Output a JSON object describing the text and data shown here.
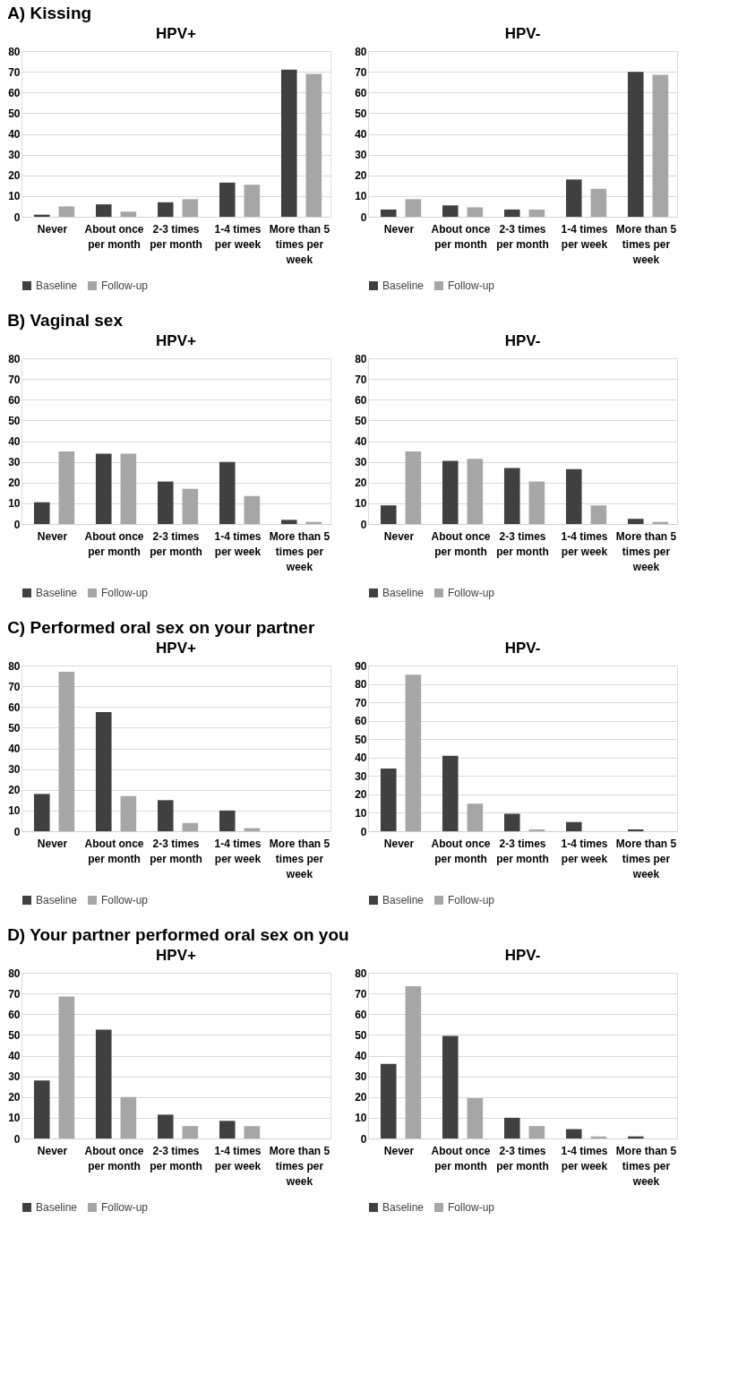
{
  "chart_data": [
    {
      "type": "bar",
      "title": "HPV+",
      "annotations": [
        "A) Kissing"
      ],
      "categories": [
        "Never",
        "About once per month",
        "2-3 times per month",
        "1-4 times per week",
        "More than 5 times per week"
      ],
      "series": [
        {
          "name": "Baseline",
          "color": "#404040",
          "values": [
            1,
            6,
            7,
            16.5,
            71
          ]
        },
        {
          "name": "Follow-up",
          "color": "#a6a6a6",
          "values": [
            5,
            2.5,
            8.5,
            15.5,
            69
          ]
        }
      ],
      "ylim": [
        0,
        80
      ],
      "yticks": [
        0,
        10,
        20,
        30,
        40,
        50,
        60,
        70,
        80
      ],
      "grid": "y",
      "legend": "bottom"
    },
    {
      "type": "bar",
      "title": "HPV-",
      "categories": [
        "Never",
        "About once per month",
        "2-3 times per month",
        "1-4 times per week",
        "More than 5 times per week"
      ],
      "series": [
        {
          "name": "Baseline",
          "color": "#404040",
          "values": [
            3.5,
            5.5,
            3.5,
            18,
            70
          ]
        },
        {
          "name": "Follow-up",
          "color": "#a6a6a6",
          "values": [
            8.5,
            4.5,
            3.5,
            13.5,
            68.5
          ]
        }
      ],
      "ylim": [
        0,
        80
      ],
      "yticks": [
        0,
        10,
        20,
        30,
        40,
        50,
        60,
        70,
        80
      ],
      "grid": "y",
      "legend": "bottom"
    },
    {
      "type": "bar",
      "title": "HPV+",
      "annotations": [
        "B) Vaginal sex"
      ],
      "categories": [
        "Never",
        "About once per month",
        "2-3 times per month",
        "1-4 times per week",
        "More than 5 times per week"
      ],
      "series": [
        {
          "name": "Baseline",
          "color": "#404040",
          "values": [
            10.5,
            34,
            20.5,
            30,
            2
          ]
        },
        {
          "name": "Follow-up",
          "color": "#a6a6a6",
          "values": [
            35,
            34,
            17,
            13.5,
            1
          ]
        }
      ],
      "ylim": [
        0,
        80
      ],
      "yticks": [
        0,
        10,
        20,
        30,
        40,
        50,
        60,
        70,
        80
      ],
      "grid": "y",
      "legend": "bottom"
    },
    {
      "type": "bar",
      "title": "HPV-",
      "categories": [
        "Never",
        "About once per month",
        "2-3 times per month",
        "1-4 times per week",
        "More than 5 times per week"
      ],
      "series": [
        {
          "name": "Baseline",
          "color": "#404040",
          "values": [
            9,
            30.5,
            27,
            26.5,
            2.5
          ]
        },
        {
          "name": "Follow-up",
          "color": "#a6a6a6",
          "values": [
            35,
            31.5,
            20.5,
            9,
            1
          ]
        }
      ],
      "ylim": [
        0,
        80
      ],
      "yticks": [
        0,
        10,
        20,
        30,
        40,
        50,
        60,
        70,
        80
      ],
      "grid": "y",
      "legend": "bottom"
    },
    {
      "type": "bar",
      "title": "HPV+",
      "annotations": [
        "C) Performed oral sex on your partner"
      ],
      "categories": [
        "Never",
        "About once per month",
        "2-3 times per month",
        "1-4 times per week",
        "More than 5 times per week"
      ],
      "series": [
        {
          "name": "Baseline",
          "color": "#404040",
          "values": [
            18,
            57.5,
            15,
            10,
            0
          ]
        },
        {
          "name": "Follow-up",
          "color": "#a6a6a6",
          "values": [
            77,
            17,
            4,
            1.5,
            0
          ]
        }
      ],
      "ylim": [
        0,
        80
      ],
      "yticks": [
        0,
        10,
        20,
        30,
        40,
        50,
        60,
        70,
        80
      ],
      "grid": "y",
      "legend": "bottom"
    },
    {
      "type": "bar",
      "title": "HPV-",
      "categories": [
        "Never",
        "About once per month",
        "2-3 times per month",
        "1-4 times per week",
        "More than 5 times per week"
      ],
      "series": [
        {
          "name": "Baseline",
          "color": "#404040",
          "values": [
            34,
            41,
            9.5,
            5,
            1
          ]
        },
        {
          "name": "Follow-up",
          "color": "#a6a6a6",
          "values": [
            85,
            15,
            1,
            0,
            0
          ]
        }
      ],
      "ylim": [
        0,
        90
      ],
      "yticks": [
        0,
        10,
        20,
        30,
        40,
        50,
        60,
        70,
        80,
        90
      ],
      "grid": "y",
      "legend": "bottom"
    },
    {
      "type": "bar",
      "title": "HPV+",
      "annotations": [
        "D) Your partner performed oral sex on you"
      ],
      "categories": [
        "Never",
        "About once per month",
        "2-3 times per month",
        "1-4 times per week",
        "More than 5 times per week"
      ],
      "series": [
        {
          "name": "Baseline",
          "color": "#404040",
          "values": [
            28,
            52.5,
            11.5,
            8.5,
            0
          ]
        },
        {
          "name": "Follow-up",
          "color": "#a6a6a6",
          "values": [
            68.5,
            20,
            6,
            6,
            0
          ]
        }
      ],
      "ylim": [
        0,
        80
      ],
      "yticks": [
        0,
        10,
        20,
        30,
        40,
        50,
        60,
        70,
        80
      ],
      "grid": "y",
      "legend": "bottom"
    },
    {
      "type": "bar",
      "title": "HPV-",
      "categories": [
        "Never",
        "About once per month",
        "2-3 times per month",
        "1-4 times per week",
        "More than 5 times per week"
      ],
      "series": [
        {
          "name": "Baseline",
          "color": "#404040",
          "values": [
            36,
            49.5,
            10,
            4.5,
            1
          ]
        },
        {
          "name": "Follow-up",
          "color": "#a6a6a6",
          "values": [
            73.5,
            19.5,
            6,
            1,
            0
          ]
        }
      ],
      "ylim": [
        0,
        80
      ],
      "yticks": [
        0,
        10,
        20,
        30,
        40,
        50,
        60,
        70,
        80
      ],
      "grid": "y",
      "legend": "bottom"
    }
  ]
}
